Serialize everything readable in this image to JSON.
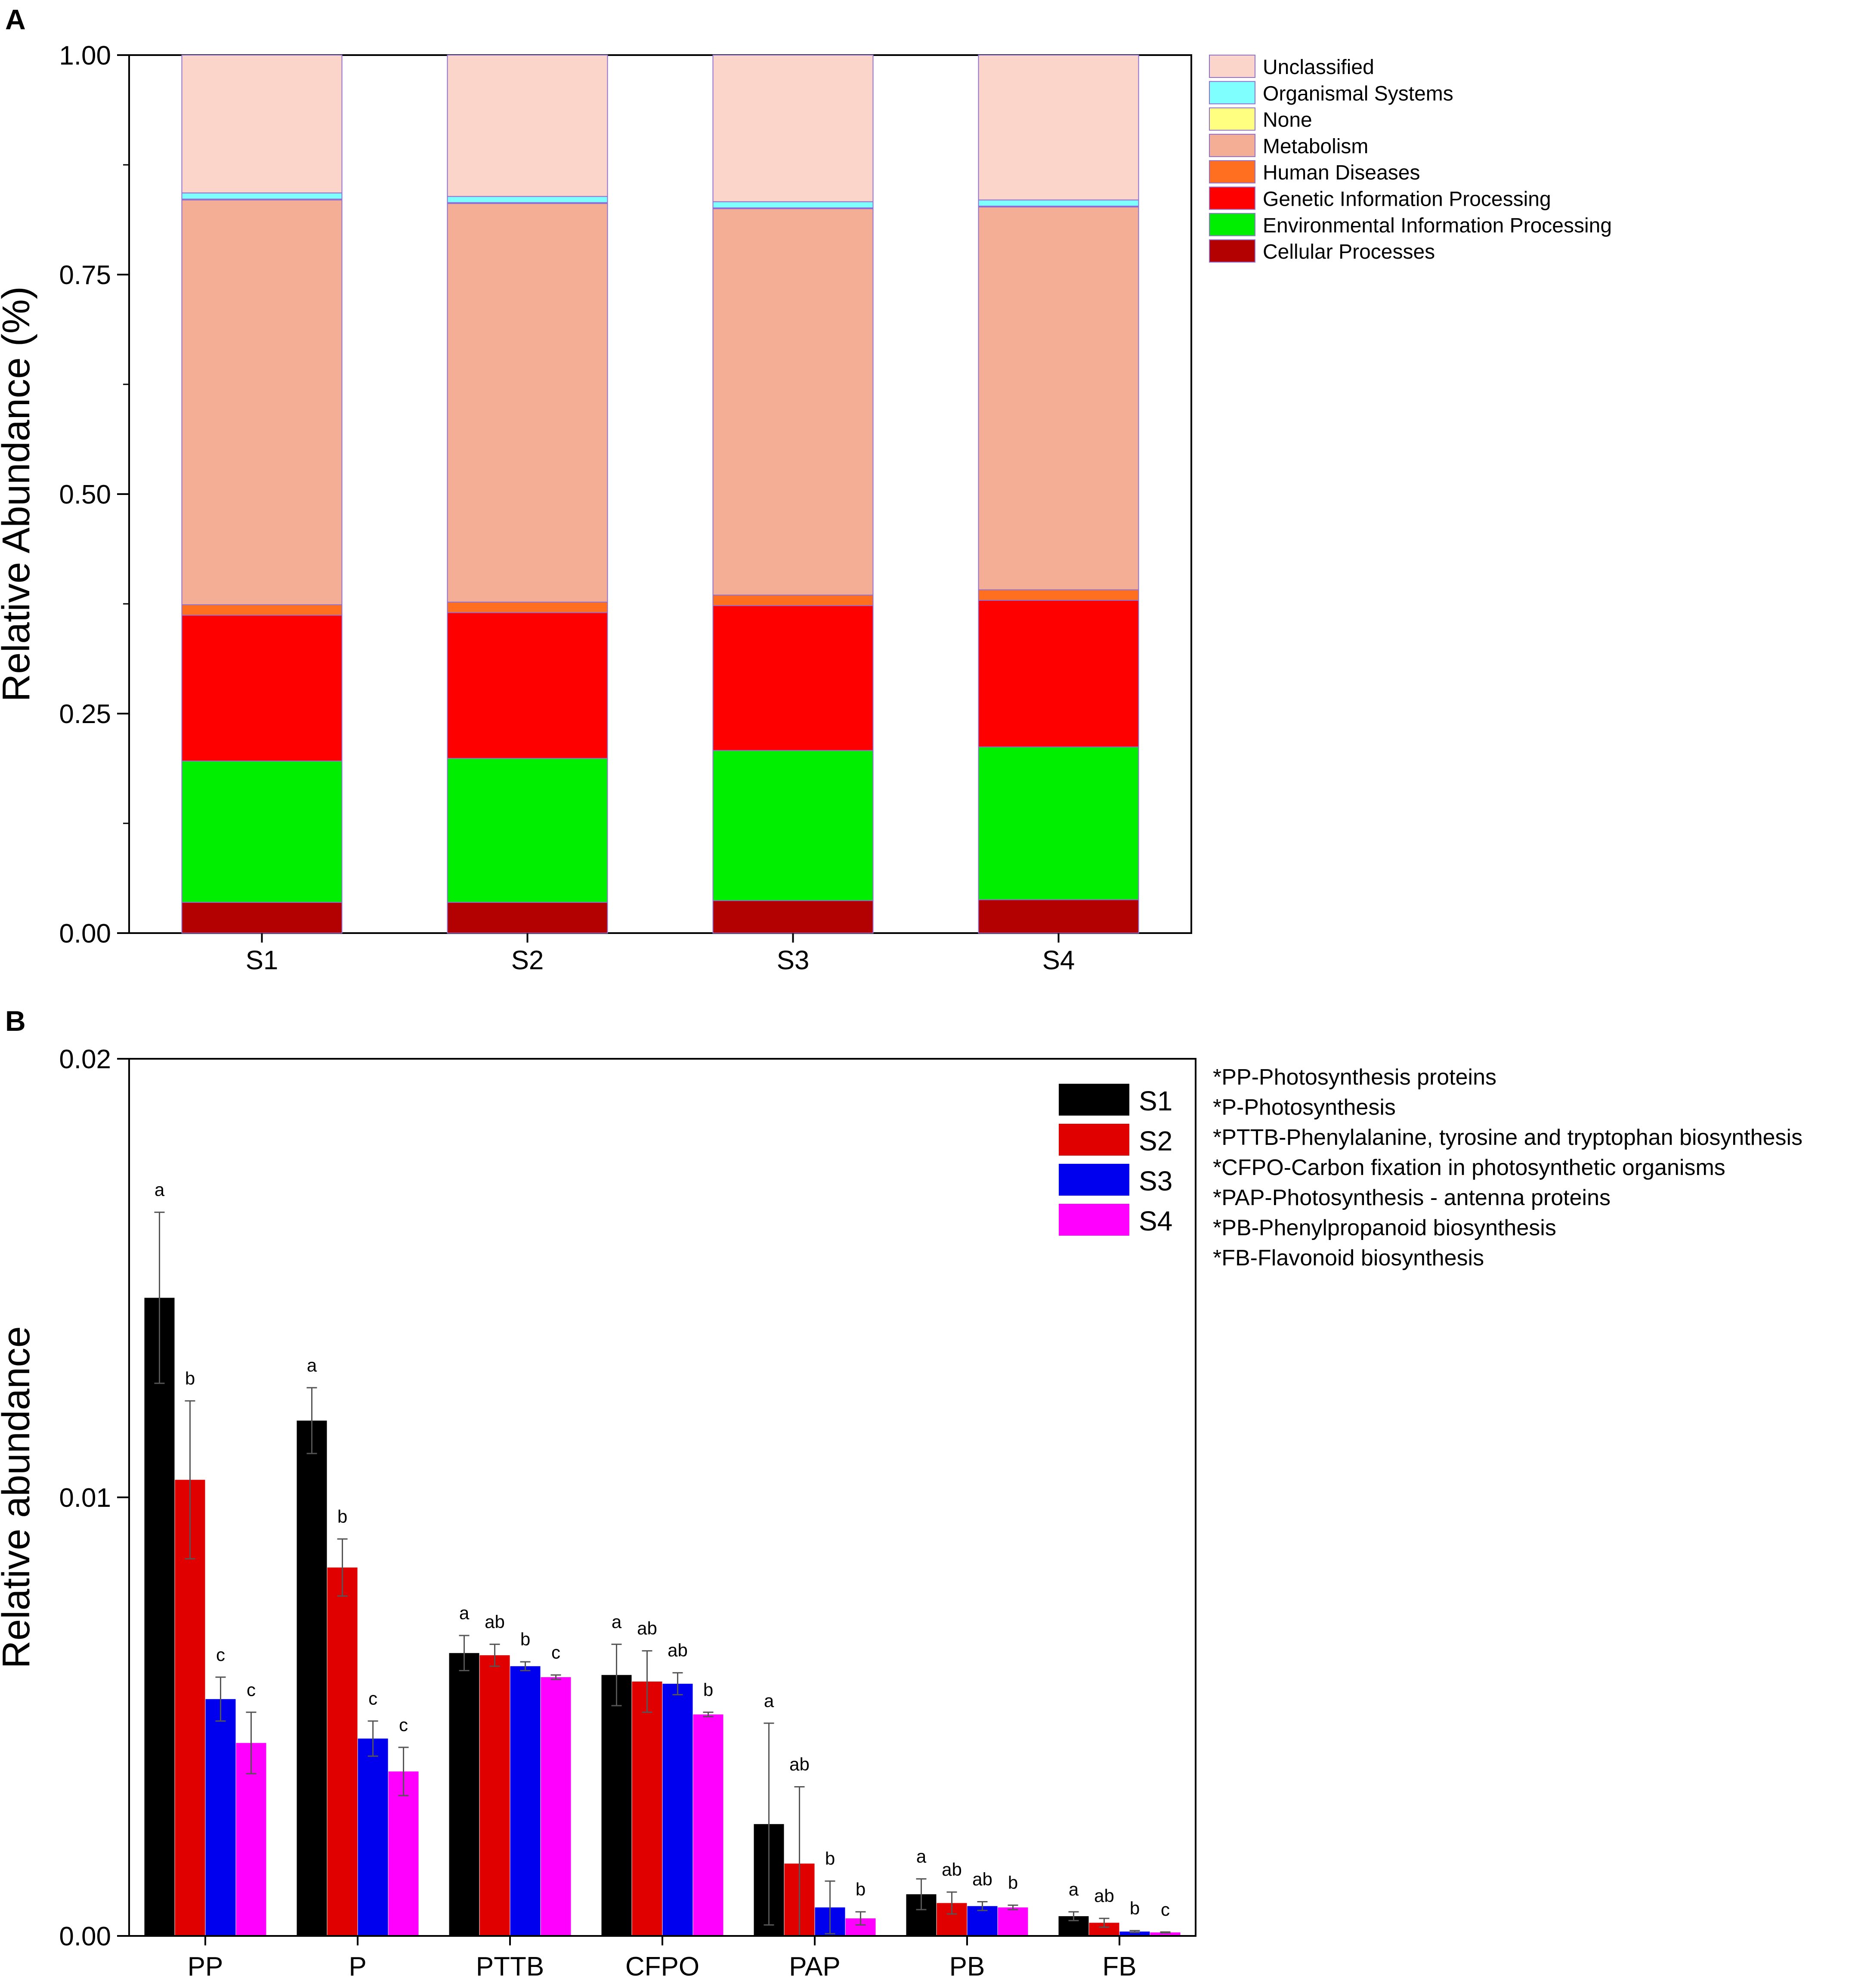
{
  "panel_labels": {
    "a": "A",
    "b": "B"
  },
  "footnotes": [
    "*PP-Photosynthesis proteins",
    "*P-Photosynthesis",
    "*PTTB-Phenylalanine, tyrosine and tryptophan biosynthesis",
    "*CFPO-Carbon fixation in photosynthetic organisms",
    "*PAP-Photosynthesis - antenna proteins",
    "*PB-Phenylpropanoid biosynthesis",
    "*FB-Flavonoid biosynthesis"
  ],
  "chart_data": [
    {
      "type": "bar",
      "stacked": true,
      "title": "",
      "xlabel": "",
      "ylabel": "Relative Abundance (%)",
      "ylim": [
        0,
        1
      ],
      "yticks": [
        "0.00",
        "0.25",
        "0.50",
        "0.75",
        "1.00"
      ],
      "categories": [
        "S1",
        "S2",
        "S3",
        "S4"
      ],
      "legend_position": "right",
      "series": [
        {
          "name": "Cellular Processes",
          "color": "#b30000",
          "values": [
            0.035,
            0.035,
            0.037,
            0.038
          ]
        },
        {
          "name": "Environmental Information Processing",
          "color": "#00ee00",
          "values": [
            0.161,
            0.164,
            0.171,
            0.174
          ]
        },
        {
          "name": "Genetic Information Processing",
          "color": "#ff0000",
          "values": [
            0.166,
            0.166,
            0.165,
            0.167
          ]
        },
        {
          "name": "Human Diseases",
          "color": "#ff6f1f",
          "values": [
            0.012,
            0.012,
            0.012,
            0.012
          ]
        },
        {
          "name": "Metabolism",
          "color": "#f4ae95",
          "values": [
            0.461,
            0.454,
            0.44,
            0.436
          ]
        },
        {
          "name": "None",
          "color": "#ffff80",
          "values": [
            0.001,
            0.001,
            0.001,
            0.001
          ]
        },
        {
          "name": "Organismal Systems",
          "color": "#80ffff",
          "values": [
            0.007,
            0.007,
            0.007,
            0.007
          ]
        },
        {
          "name": "Unclassified",
          "color": "#fbd5c9",
          "values": [
            0.157,
            0.161,
            0.167,
            0.165
          ]
        }
      ]
    },
    {
      "type": "bar",
      "stacked": false,
      "title": "",
      "xlabel": "",
      "ylabel": "Relative abundance",
      "ylim": [
        0,
        0.02
      ],
      "yticks": [
        "0.00",
        "0.01",
        "0.02"
      ],
      "categories": [
        "PP",
        "P",
        "PTTB",
        "CFPO",
        "PAP",
        "PB",
        "FB"
      ],
      "legend_position": "top-right",
      "series": [
        {
          "name": "S1",
          "color": "#000000",
          "values": [
            0.01455,
            0.01175,
            0.00645,
            0.00595,
            0.00255,
            0.00095,
            0.00045
          ],
          "errors": [
            0.00195,
            0.00075,
            0.0004,
            0.0007,
            0.0023,
            0.00035,
            0.0001
          ],
          "letters": [
            "a",
            "a",
            "a",
            "a",
            "a",
            "a",
            "a"
          ]
        },
        {
          "name": "S2",
          "color": "#e00000",
          "values": [
            0.0104,
            0.0084,
            0.0064,
            0.0058,
            0.00165,
            0.00075,
            0.0003
          ],
          "errors": [
            0.0018,
            0.00065,
            0.00025,
            0.0007,
            0.00175,
            0.00025,
            0.0001
          ],
          "letters": [
            "b",
            "b",
            "ab",
            "ab",
            "ab",
            "ab",
            "ab"
          ]
        },
        {
          "name": "S3",
          "color": "#0000ee",
          "values": [
            0.0054,
            0.0045,
            0.00615,
            0.00575,
            0.00065,
            0.00068,
            0.0001
          ],
          "errors": [
            0.0005,
            0.0004,
            0.0001,
            0.00025,
            0.0006,
            0.0001,
            2e-05
          ],
          "letters": [
            "c",
            "c",
            "b",
            "ab",
            "b",
            "ab",
            "b"
          ]
        },
        {
          "name": "S4",
          "color": "#ff00ff",
          "values": [
            0.0044,
            0.00375,
            0.0059,
            0.00505,
            0.0004,
            0.00065,
            8e-05
          ],
          "errors": [
            0.0007,
            0.00055,
            5e-05,
            5e-05,
            0.00015,
            5e-05,
            1e-05
          ],
          "letters": [
            "c",
            "c",
            "c",
            "b",
            "b",
            "b",
            "c"
          ]
        }
      ]
    }
  ]
}
